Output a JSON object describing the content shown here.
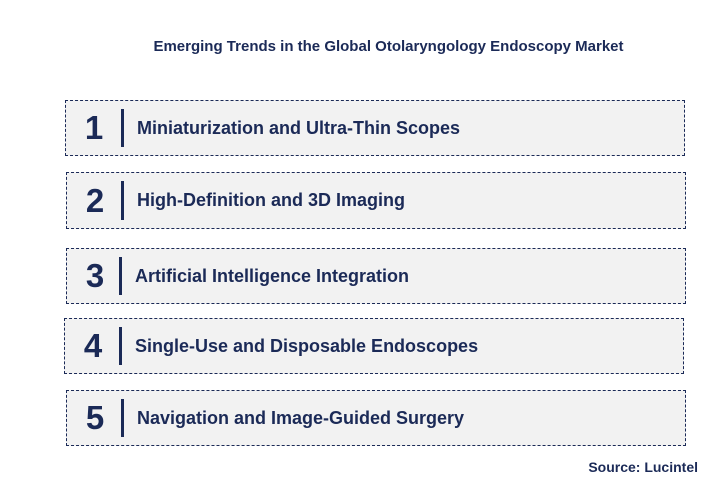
{
  "title": "Emerging Trends in the Global Otolaryngology Endoscopy Market",
  "trends": [
    {
      "number": "1",
      "label": "Miniaturization and Ultra-Thin Scopes"
    },
    {
      "number": "2",
      "label": "High-Definition and 3D Imaging"
    },
    {
      "number": "3",
      "label": "Artificial Intelligence Integration"
    },
    {
      "number": "4",
      "label": "Single-Use and Disposable Endoscopes"
    },
    {
      "number": "5",
      "label": "Navigation and Image-Guided Surgery"
    }
  ],
  "source": "Source: Lucintel",
  "colors": {
    "text": "#1b2a57",
    "box_fill": "#f2f2f2",
    "box_border": "#1b2a57"
  }
}
